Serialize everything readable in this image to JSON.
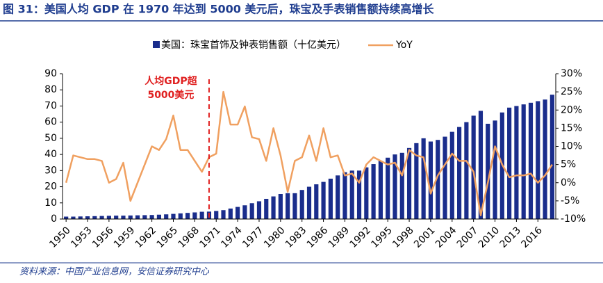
{
  "chart_data": {
    "type": "bar_line",
    "title": "图 31：美国人均 GDP 在 1970 年达到 5000 美元后，珠宝及手表销售额持续高增长",
    "source": "资料来源：中国产业信息网，安信证券研究中心",
    "x": [
      1950,
      1951,
      1952,
      1953,
      1954,
      1955,
      1956,
      1957,
      1958,
      1959,
      1960,
      1961,
      1962,
      1963,
      1964,
      1965,
      1966,
      1967,
      1968,
      1969,
      1970,
      1971,
      1972,
      1973,
      1974,
      1975,
      1976,
      1977,
      1978,
      1979,
      1980,
      1981,
      1982,
      1983,
      1984,
      1985,
      1986,
      1987,
      1988,
      1989,
      1990,
      1991,
      1992,
      1993,
      1994,
      1995,
      1996,
      1997,
      1998,
      1999,
      2000,
      2001,
      2002,
      2003,
      2004,
      2005,
      2006,
      2007,
      2008,
      2009,
      2010,
      2011,
      2012,
      2013,
      2014,
      2015,
      2016,
      2017,
      2018
    ],
    "xlim": [
      1949.5,
      2018.5
    ],
    "xticks": [
      1950,
      1953,
      1956,
      1959,
      1962,
      1965,
      1968,
      1971,
      1974,
      1977,
      1980,
      1983,
      1986,
      1989,
      1992,
      1995,
      1998,
      2001,
      2004,
      2007,
      2010,
      2013,
      2016
    ],
    "series": [
      {
        "name": "美国：珠宝首饰及钟表销售额（十亿美元）",
        "color": "#1a2d8c",
        "kind": "bar",
        "values": [
          1.5,
          1.5,
          1.6,
          1.7,
          1.8,
          1.9,
          2,
          2.1,
          2.1,
          2.2,
          2.3,
          2.4,
          2.5,
          2.7,
          2.9,
          3.2,
          3.5,
          3.8,
          4.1,
          4.5,
          4.6,
          5,
          5.5,
          6.5,
          7.5,
          8.5,
          9.8,
          11,
          12.5,
          14,
          15.5,
          16,
          16,
          18,
          20,
          21.5,
          23,
          25,
          27,
          29,
          30,
          30,
          32,
          34,
          36,
          38,
          40,
          41,
          44,
          47,
          50,
          48,
          49,
          51,
          54,
          57,
          60,
          64,
          67,
          59,
          61,
          66,
          69,
          70,
          71,
          72,
          73,
          74,
          77
        ]
      },
      {
        "name": "YoY",
        "color": "#f0a060",
        "kind": "line",
        "axis": "y2",
        "values": [
          0,
          7.5,
          7,
          6.5,
          6.5,
          6,
          0,
          1,
          5.5,
          -5,
          0,
          5,
          10,
          9,
          12,
          18.5,
          9,
          9,
          6,
          3,
          7,
          8,
          25,
          16,
          16,
          21,
          12.5,
          12,
          6,
          15,
          7.5,
          -2.5,
          6,
          7,
          13,
          6,
          15,
          7,
          7.5,
          2,
          2.5,
          0,
          5,
          7,
          6,
          5,
          5.5,
          2,
          9,
          7.5,
          7,
          -3,
          2,
          5,
          8,
          6,
          6,
          3,
          -9,
          0,
          10,
          5,
          1.5,
          2,
          2,
          2.5,
          0,
          2,
          5
        ]
      }
    ],
    "ylim": [
      0,
      90
    ],
    "yticks": [
      0,
      10,
      20,
      30,
      40,
      50,
      60,
      70,
      80,
      90
    ],
    "y2lim": [
      -10,
      30
    ],
    "y2ticks": [
      {
        "value": -10,
        "label": "-10%"
      },
      {
        "value": -5,
        "label": "-5%"
      },
      {
        "value": 0,
        "label": "0%"
      },
      {
        "value": 5,
        "label": "5%"
      },
      {
        "value": 10,
        "label": "10%"
      },
      {
        "value": 15,
        "label": "15%"
      },
      {
        "value": 20,
        "label": "20%"
      },
      {
        "value": 25,
        "label": "25%"
      },
      {
        "value": 30,
        "label": "30%"
      }
    ],
    "annotation": {
      "x": 1970,
      "lines": [
        "人均GDP超",
        "5000美元"
      ],
      "color": "#e02020"
    }
  }
}
